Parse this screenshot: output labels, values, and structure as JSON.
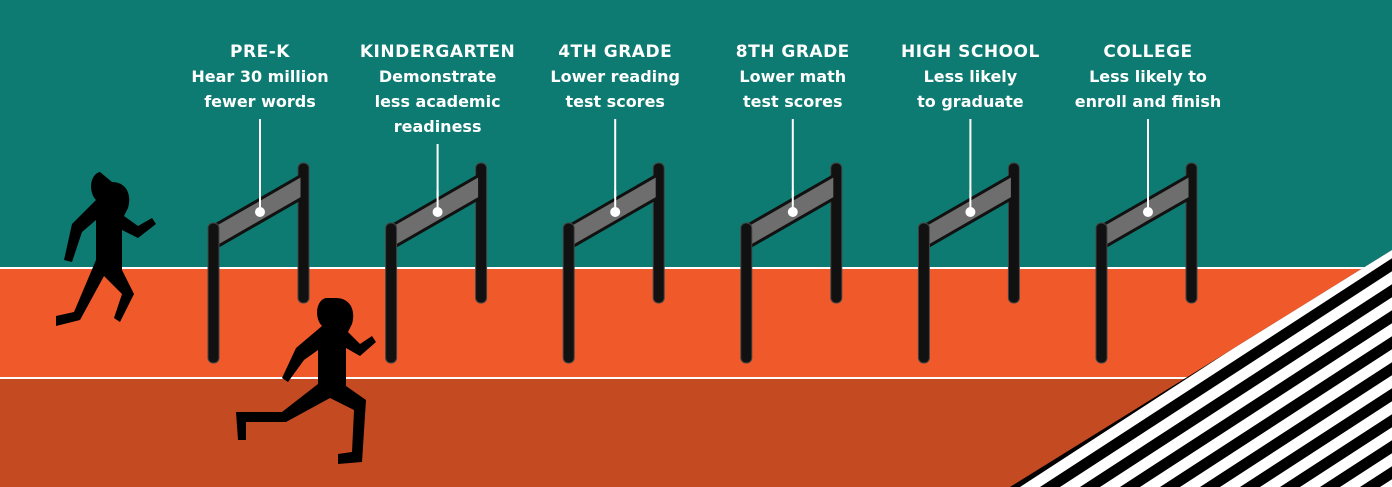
{
  "stages": [
    {
      "title": "PRE-K",
      "lines": [
        "Hear 30 million",
        "fewer words"
      ]
    },
    {
      "title": "KINDERGARTEN",
      "lines": [
        "Demonstrate",
        "less academic",
        "readiness"
      ]
    },
    {
      "title": "4TH GRADE",
      "lines": [
        "Lower reading",
        "test scores"
      ]
    },
    {
      "title": "8TH GRADE",
      "lines": [
        "Lower math",
        "test scores"
      ]
    },
    {
      "title": "HIGH SCHOOL",
      "lines": [
        "Less likely",
        "to graduate"
      ]
    },
    {
      "title": "COLLEGE",
      "lines": [
        "Less likely to",
        "enroll and finish"
      ]
    }
  ]
}
